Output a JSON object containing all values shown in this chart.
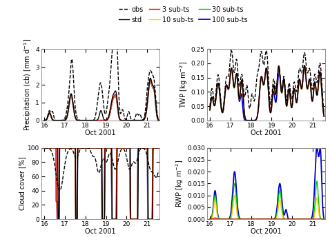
{
  "t_start": 16.0,
  "t_end": 21.55,
  "n_points": 660,
  "legend_entries": [
    {
      "label": "obs",
      "color": "black",
      "linestyle": "--",
      "linewidth": 1.0
    },
    {
      "label": "std",
      "color": "black",
      "linestyle": "-",
      "linewidth": 1.0
    },
    {
      "label": "3 sub-ts",
      "color": "#FF0000",
      "linestyle": "-",
      "linewidth": 1.0
    },
    {
      "label": "10 sub-ts",
      "color": "#FFCC00",
      "linestyle": "-",
      "linewidth": 1.0
    },
    {
      "label": "30 sub-ts",
      "color": "#00CC00",
      "linestyle": "-",
      "linewidth": 1.0
    },
    {
      "label": "100 sub-ts",
      "color": "#0000CC",
      "linestyle": "-",
      "linewidth": 1.3
    }
  ],
  "panels": [
    {
      "ylabel": "Precipitation (cb) [mm d$^{-1}$]",
      "xlabel": "Oct 2001",
      "ylim": [
        0,
        4
      ],
      "yticks": [
        0,
        1,
        2,
        3,
        4
      ],
      "position": "upper_left"
    },
    {
      "ylabel": "TWP [kg m$^{-2}$]",
      "xlabel": "Oct 2001",
      "ylim": [
        0.0,
        0.25
      ],
      "yticks": [
        0.0,
        0.05,
        0.1,
        0.15,
        0.2,
        0.25
      ],
      "position": "upper_right"
    },
    {
      "ylabel": "Cloud cover [%]",
      "xlabel": "Oct 2001",
      "ylim": [
        0,
        100
      ],
      "yticks": [
        0,
        20,
        40,
        60,
        80,
        100
      ],
      "position": "lower_left"
    },
    {
      "ylabel": "RWP [kg m$^{-2}$]",
      "xlabel": "Oct 2001",
      "ylim": [
        0.0,
        0.03
      ],
      "yticks": [
        0.0,
        0.005,
        0.01,
        0.015,
        0.02,
        0.025,
        0.03
      ],
      "position": "lower_right"
    }
  ],
  "xticks": [
    16,
    17,
    18,
    19,
    20,
    21
  ],
  "xlim": [
    15.85,
    21.6
  ],
  "background_color": "#ffffff",
  "tick_fontsize": 6.5,
  "label_fontsize": 7.0,
  "legend_fontsize": 7.0
}
